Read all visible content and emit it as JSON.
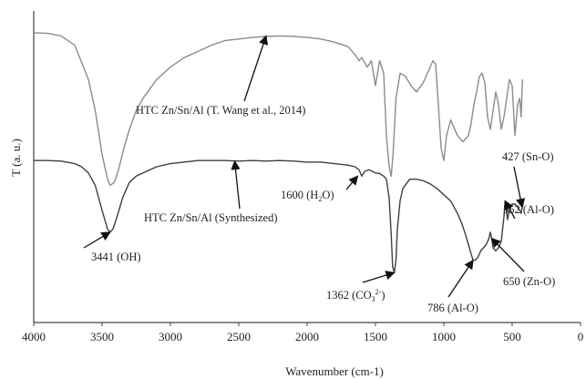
{
  "chart_data": {
    "type": "line",
    "xlabel": "Wavenumber (cm-1)",
    "ylabel": "T (a. u.)",
    "xlim": [
      4000,
      0
    ],
    "x_ticks": [
      "4000",
      "3500",
      "3000",
      "2500",
      "2000",
      "1500",
      "1000",
      "500",
      "0"
    ],
    "grid": false,
    "legend": "none",
    "series": [
      {
        "label_text": "HTC Zn/Sn/Al (T. Wang et al., 2014)",
        "color": "#8c8c8c",
        "x": [
          4000,
          3900,
          3800,
          3700,
          3600,
          3550,
          3500,
          3460,
          3440,
          3410,
          3380,
          3340,
          3300,
          3250,
          3200,
          3100,
          3000,
          2900,
          2800,
          2700,
          2600,
          2500,
          2400,
          2300,
          2200,
          2100,
          2000,
          1900,
          1800,
          1700,
          1650,
          1620,
          1600,
          1560,
          1530,
          1500,
          1470,
          1440,
          1420,
          1400,
          1385,
          1370,
          1350,
          1320,
          1280,
          1240,
          1200,
          1150,
          1100,
          1080,
          1060,
          1040,
          1020,
          1000,
          980,
          950,
          900,
          860,
          820,
          800,
          780,
          760,
          740,
          720,
          700,
          680,
          660,
          640,
          620,
          600,
          580,
          560,
          540,
          520,
          500,
          480,
          460,
          445,
          435,
          425
        ],
        "y": [
          0.93,
          0.928,
          0.92,
          0.89,
          0.78,
          0.68,
          0.54,
          0.46,
          0.44,
          0.45,
          0.49,
          0.56,
          0.62,
          0.68,
          0.72,
          0.78,
          0.82,
          0.85,
          0.87,
          0.89,
          0.905,
          0.91,
          0.915,
          0.918,
          0.92,
          0.918,
          0.915,
          0.91,
          0.9,
          0.885,
          0.86,
          0.84,
          0.85,
          0.82,
          0.84,
          0.76,
          0.84,
          0.8,
          0.6,
          0.5,
          0.47,
          0.55,
          0.72,
          0.8,
          0.79,
          0.76,
          0.74,
          0.77,
          0.82,
          0.84,
          0.83,
          0.7,
          0.56,
          0.52,
          0.6,
          0.65,
          0.6,
          0.58,
          0.6,
          0.64,
          0.7,
          0.74,
          0.79,
          0.8,
          0.77,
          0.66,
          0.62,
          0.68,
          0.74,
          0.7,
          0.62,
          0.66,
          0.72,
          0.78,
          0.76,
          0.6,
          0.7,
          0.72,
          0.66,
          0.78
        ]
      },
      {
        "label_text": "HTC Zn/Sn/Al (Synthesized)",
        "color": "#3f3f3f",
        "x": [
          4000,
          3900,
          3800,
          3700,
          3650,
          3600,
          3550,
          3500,
          3460,
          3441,
          3420,
          3390,
          3350,
          3300,
          3250,
          3200,
          3100,
          3000,
          2900,
          2800,
          2700,
          2600,
          2500,
          2400,
          2300,
          2200,
          2100,
          2000,
          1900,
          1800,
          1700,
          1650,
          1620,
          1600,
          1580,
          1550,
          1520,
          1500,
          1470,
          1440,
          1420,
          1400,
          1385,
          1375,
          1362,
          1350,
          1340,
          1320,
          1300,
          1250,
          1200,
          1150,
          1100,
          1050,
          1000,
          950,
          900,
          870,
          840,
          820,
          800,
          786,
          770,
          750,
          730,
          710,
          690,
          670,
          660,
          650,
          640,
          620,
          600,
          580,
          560,
          552,
          545,
          535,
          520,
          500,
          480,
          460,
          445,
          435,
          427,
          420
        ],
        "y": [
          0.52,
          0.52,
          0.518,
          0.51,
          0.5,
          0.48,
          0.44,
          0.36,
          0.3,
          0.29,
          0.3,
          0.34,
          0.4,
          0.45,
          0.47,
          0.48,
          0.5,
          0.51,
          0.515,
          0.52,
          0.52,
          0.52,
          0.518,
          0.52,
          0.518,
          0.52,
          0.518,
          0.515,
          0.515,
          0.51,
          0.505,
          0.5,
          0.49,
          0.47,
          0.485,
          0.49,
          0.485,
          0.48,
          0.478,
          0.47,
          0.46,
          0.4,
          0.28,
          0.18,
          0.16,
          0.2,
          0.3,
          0.39,
          0.43,
          0.46,
          0.46,
          0.455,
          0.445,
          0.43,
          0.41,
          0.39,
          0.35,
          0.32,
          0.28,
          0.25,
          0.22,
          0.2,
          0.2,
          0.21,
          0.23,
          0.24,
          0.25,
          0.27,
          0.29,
          0.27,
          0.24,
          0.23,
          0.24,
          0.26,
          0.34,
          0.39,
          0.37,
          0.33,
          0.36,
          0.38,
          0.38,
          0.37,
          0.36,
          0.35,
          0.37,
          0.38
        ]
      }
    ],
    "annotations": [
      {
        "id": "ref-label",
        "parts": [
          [
            "HTC Zn/Sn/Al (T. Wang et al., 2014)",
            ""
          ]
        ],
        "arrow_to": [
          2300,
          0.92
        ]
      },
      {
        "id": "synth-label",
        "parts": [
          [
            "HTC Zn/Sn/Al (Synthesized)",
            ""
          ]
        ],
        "arrow_to": [
          2530,
          0.518
        ]
      },
      {
        "id": "oh-3441",
        "parts": [
          [
            "3441 (OH)",
            ""
          ]
        ],
        "arrow_to": [
          3441,
          0.29
        ]
      },
      {
        "id": "h2o-1600",
        "parts": [
          [
            "1600 (H",
            ""
          ],
          [
            "2",
            "sub"
          ],
          [
            "O)",
            ""
          ]
        ],
        "arrow_to": [
          1630,
          0.47
        ]
      },
      {
        "id": "co3-1362",
        "parts": [
          [
            "1362 (CO",
            ""
          ],
          [
            "3",
            "sub"
          ],
          [
            "2-",
            "sup"
          ],
          [
            ")",
            ""
          ]
        ],
        "arrow_to": [
          1362,
          0.16
        ]
      },
      {
        "id": "alo-786",
        "parts": [
          [
            "786 (Al-O)",
            ""
          ]
        ],
        "arrow_to": [
          786,
          0.2
        ]
      },
      {
        "id": "zno-650",
        "parts": [
          [
            "650 (Zn-O)",
            ""
          ]
        ],
        "arrow_to": [
          650,
          0.27
        ]
      },
      {
        "id": "alo-552",
        "parts": [
          [
            "552 (Al-O)",
            ""
          ]
        ],
        "arrow_to": [
          552,
          0.39
        ]
      },
      {
        "id": "sno-427",
        "parts": [
          [
            "427 (Sn-O)",
            ""
          ]
        ],
        "arrow_to": [
          427,
          0.37
        ]
      }
    ]
  }
}
